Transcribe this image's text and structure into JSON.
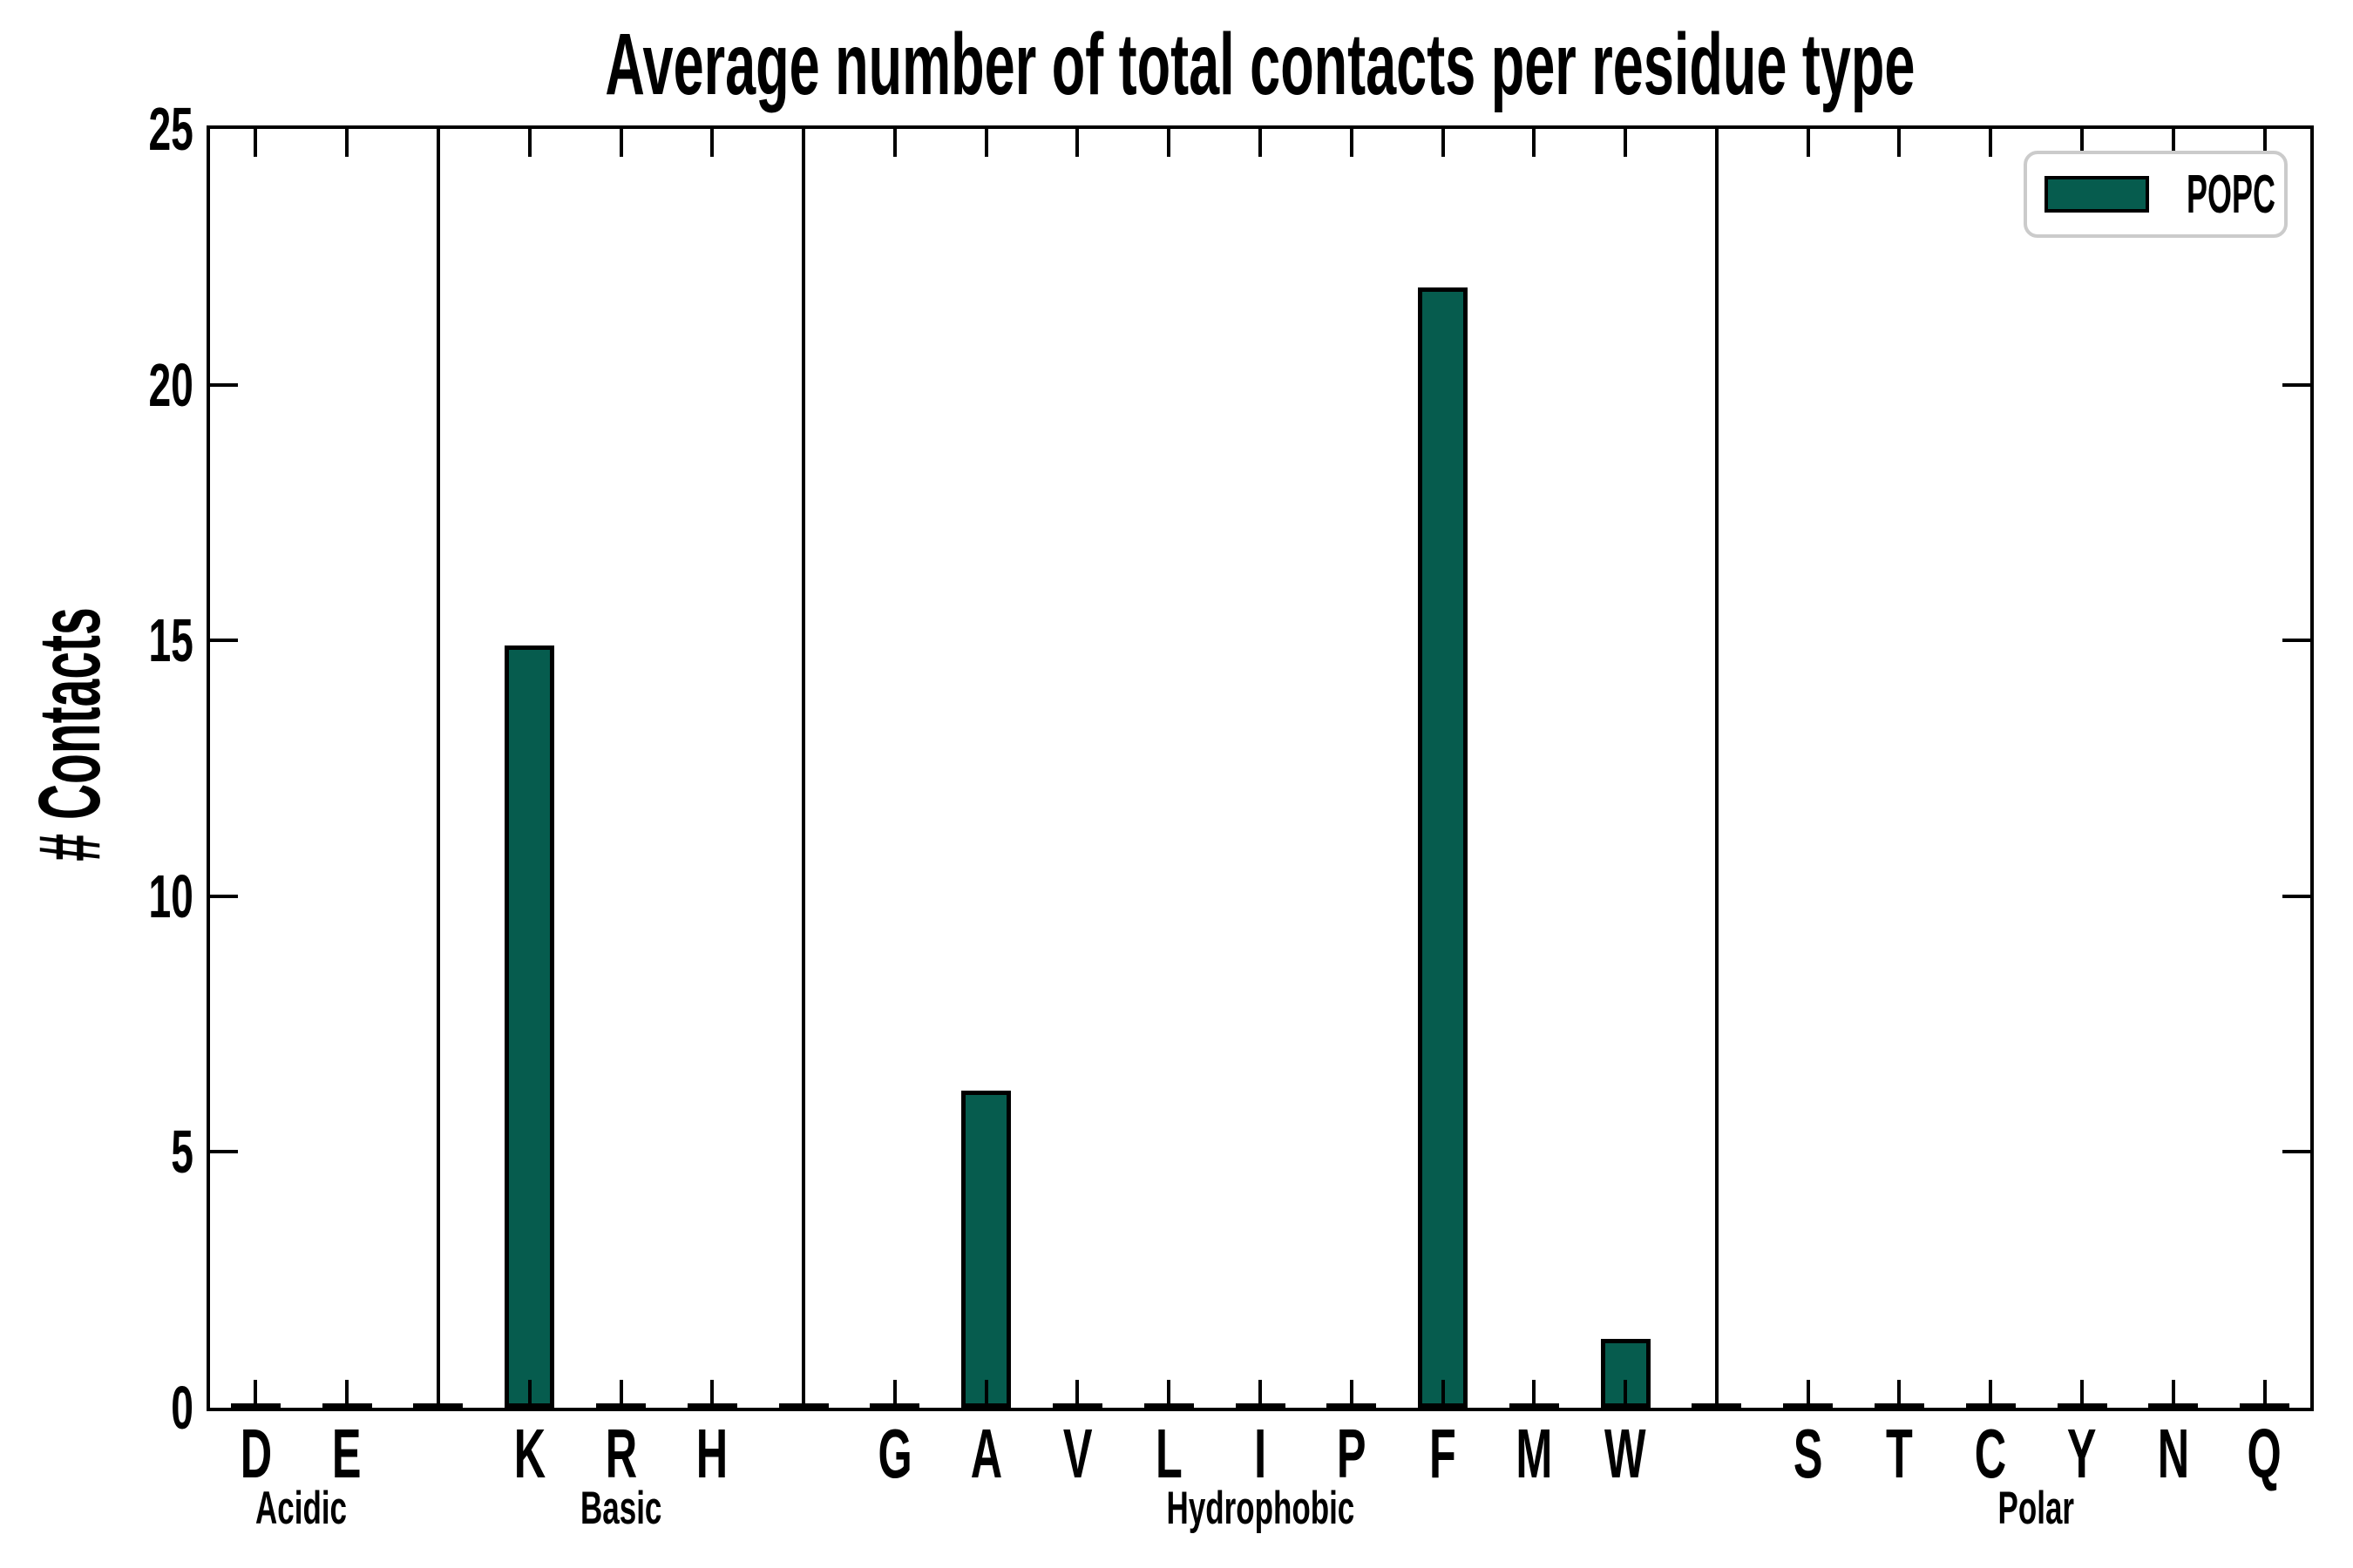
{
  "chart_data": {
    "type": "bar",
    "title": "Average number of total contacts per residue type",
    "ylabel": "# Contacts",
    "xlabel": "",
    "ylim": [
      0,
      25
    ],
    "yticks": [
      0,
      5,
      10,
      15,
      20,
      25
    ],
    "grid": false,
    "tick_direction": "in",
    "legend": {
      "label": "POPC",
      "position": "upper right"
    },
    "colors": {
      "bar_fill": "#065C4E",
      "bar_edge": "#000000",
      "axes": "#000000",
      "legend_border": "#cbcbcb",
      "background": "#ffffff"
    },
    "groups": [
      {
        "name": "Acidic",
        "residues": [
          "D",
          "E"
        ],
        "values": [
          0,
          0
        ]
      },
      {
        "name": "Basic",
        "residues": [
          "K",
          "R",
          "H"
        ],
        "values": [
          14.9,
          0,
          0
        ]
      },
      {
        "name": "Hydrophobic",
        "residues": [
          "G",
          "A",
          "V",
          "L",
          "I",
          "P",
          "F",
          "M",
          "W"
        ],
        "values": [
          0,
          6.2,
          0,
          0,
          0,
          0,
          21.9,
          0,
          1.35
        ]
      },
      {
        "name": "Polar",
        "residues": [
          "S",
          "T",
          "C",
          "Y",
          "N",
          "Q"
        ],
        "values": [
          0,
          0,
          0,
          0,
          0,
          0
        ]
      }
    ]
  }
}
